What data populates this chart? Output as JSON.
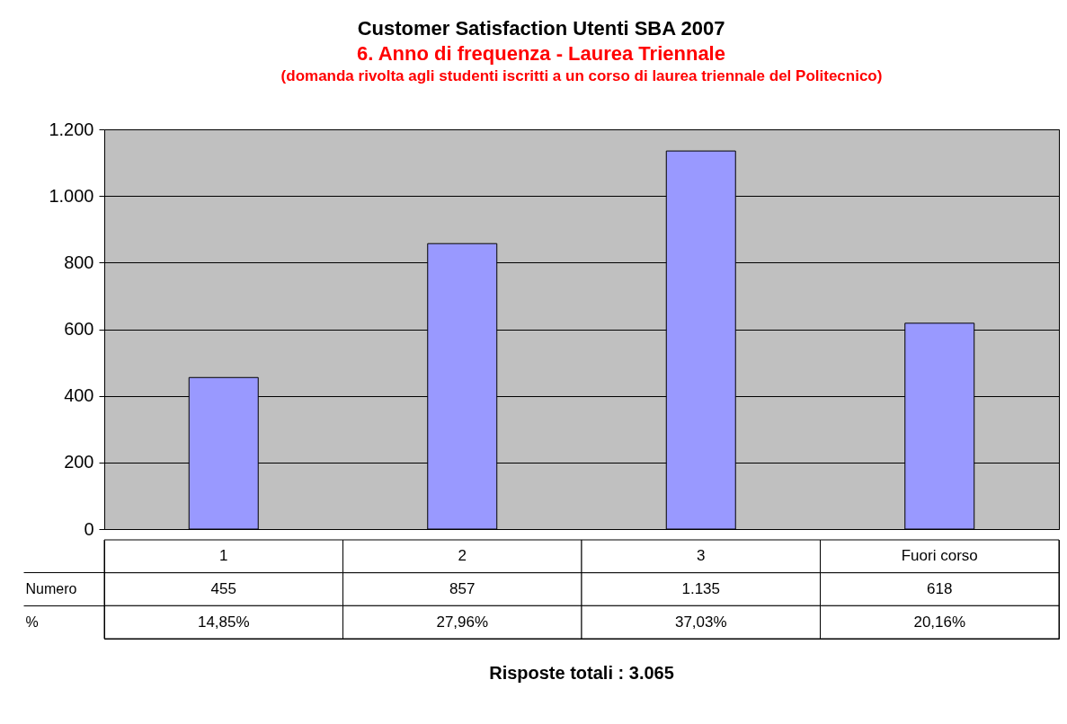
{
  "chart_data": {
    "type": "bar",
    "title": "Customer Satisfaction Utenti SBA 2007",
    "subtitle": "6. Anno di frequenza - Laurea Triennale",
    "categories": [
      "1",
      "2",
      "3",
      "Fuori corso"
    ],
    "series": [
      {
        "name": "Numero",
        "color": "#9999ff",
        "values": [
          455,
          857,
          1135,
          618
        ],
        "value_labels": [
          "455",
          "857",
          "1.135",
          "618"
        ]
      }
    ],
    "ylim": [
      0,
      1200
    ],
    "yticks": [
      0,
      200,
      400,
      600,
      800,
      {
        "value": 1000,
        "label": "1.000"
      },
      {
        "value": 1200,
        "label": "1.200"
      }
    ],
    "grid": "y",
    "annotations": [
      "(domanda rivolta agli studenti iscritti a un corso di laurea triennale del Politecnico)",
      "%",
      "14,85%",
      "27,96%",
      "37,03%",
      "20,16%",
      "Risposte totali : 3.065"
    ]
  }
}
